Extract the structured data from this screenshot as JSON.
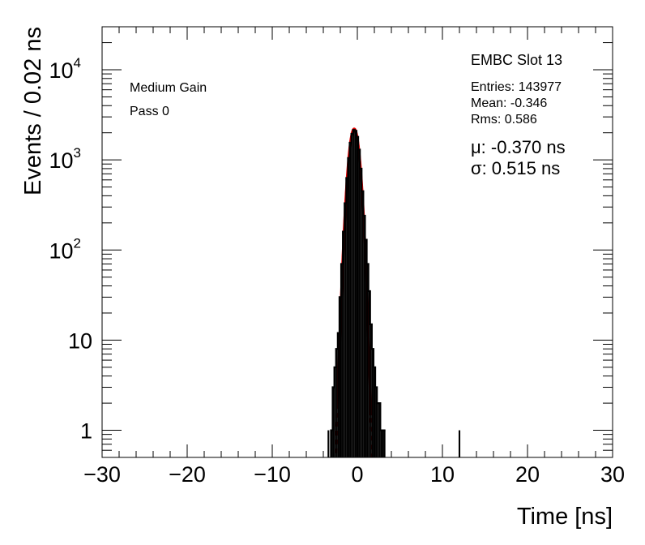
{
  "chart_data": {
    "type": "histogram",
    "title": "",
    "xlabel": "Time [ns]",
    "ylabel": "Events / 0.02 ns",
    "xlim": [
      -30,
      30
    ],
    "ylim": [
      0.5,
      30000
    ],
    "yscale": "log",
    "grid": false,
    "x_ticks": [
      -30,
      -20,
      -10,
      0,
      10,
      20,
      30
    ],
    "x_tick_labels": [
      "−30",
      "−20",
      "−10",
      "0",
      "10",
      "20",
      "30"
    ],
    "y_ticks": [
      {
        "value": 1,
        "base": "1",
        "exp": ""
      },
      {
        "value": 10,
        "base": "10",
        "exp": ""
      },
      {
        "value": 100,
        "base": "10",
        "exp": "2"
      },
      {
        "value": 1000,
        "base": "10",
        "exp": "3"
      },
      {
        "value": 10000,
        "base": "10",
        "exp": "4"
      }
    ],
    "histogram": {
      "color": "#000000",
      "bins": [
        {
          "x": -3.6,
          "y": 0
        },
        {
          "x": -3.4,
          "y": 1
        },
        {
          "x": -3.2,
          "y": 0
        },
        {
          "x": -3.0,
          "y": 1
        },
        {
          "x": -2.8,
          "y": 3
        },
        {
          "x": -2.6,
          "y": 5
        },
        {
          "x": -2.4,
          "y": 8
        },
        {
          "x": -2.2,
          "y": 12
        },
        {
          "x": -2.0,
          "y": 30
        },
        {
          "x": -1.8,
          "y": 70
        },
        {
          "x": -1.6,
          "y": 160
        },
        {
          "x": -1.4,
          "y": 330
        },
        {
          "x": -1.2,
          "y": 630
        },
        {
          "x": -1.0,
          "y": 1050
        },
        {
          "x": -0.8,
          "y": 1550
        },
        {
          "x": -0.6,
          "y": 1950
        },
        {
          "x": -0.4,
          "y": 2150
        },
        {
          "x": -0.2,
          "y": 2100
        },
        {
          "x": 0.0,
          "y": 1800
        },
        {
          "x": 0.2,
          "y": 1300
        },
        {
          "x": 0.4,
          "y": 800
        },
        {
          "x": 0.6,
          "y": 450
        },
        {
          "x": 0.8,
          "y": 240
        },
        {
          "x": 1.0,
          "y": 130
        },
        {
          "x": 1.2,
          "y": 70
        },
        {
          "x": 1.4,
          "y": 35
        },
        {
          "x": 1.6,
          "y": 15
        },
        {
          "x": 1.8,
          "y": 8
        },
        {
          "x": 2.0,
          "y": 5
        },
        {
          "x": 2.2,
          "y": 3
        },
        {
          "x": 2.4,
          "y": 2
        },
        {
          "x": 2.6,
          "y": 2
        },
        {
          "x": 2.8,
          "y": 1
        },
        {
          "x": 3.0,
          "y": 1
        },
        {
          "x": 3.2,
          "y": 1
        },
        {
          "x": 3.4,
          "y": 0
        },
        {
          "x": 12.0,
          "y": 1
        }
      ]
    },
    "fit": {
      "color": "#e00000",
      "mu": -0.37,
      "sigma": 0.515,
      "amplitude": 2200,
      "solid_range": [
        -2.3,
        1.6
      ],
      "dashed_range": [
        -2.6,
        1.8
      ]
    },
    "stats_box": {
      "name": "EMBC Slot 13",
      "entries": "Entries: 143977",
      "mean": "Mean: -0.346",
      "rms": "Rms: 0.586",
      "mu": "μ: -0.370 ns",
      "sigma": "σ: 0.515 ns"
    },
    "annotations": [
      "Medium Gain",
      "Pass 0"
    ]
  }
}
